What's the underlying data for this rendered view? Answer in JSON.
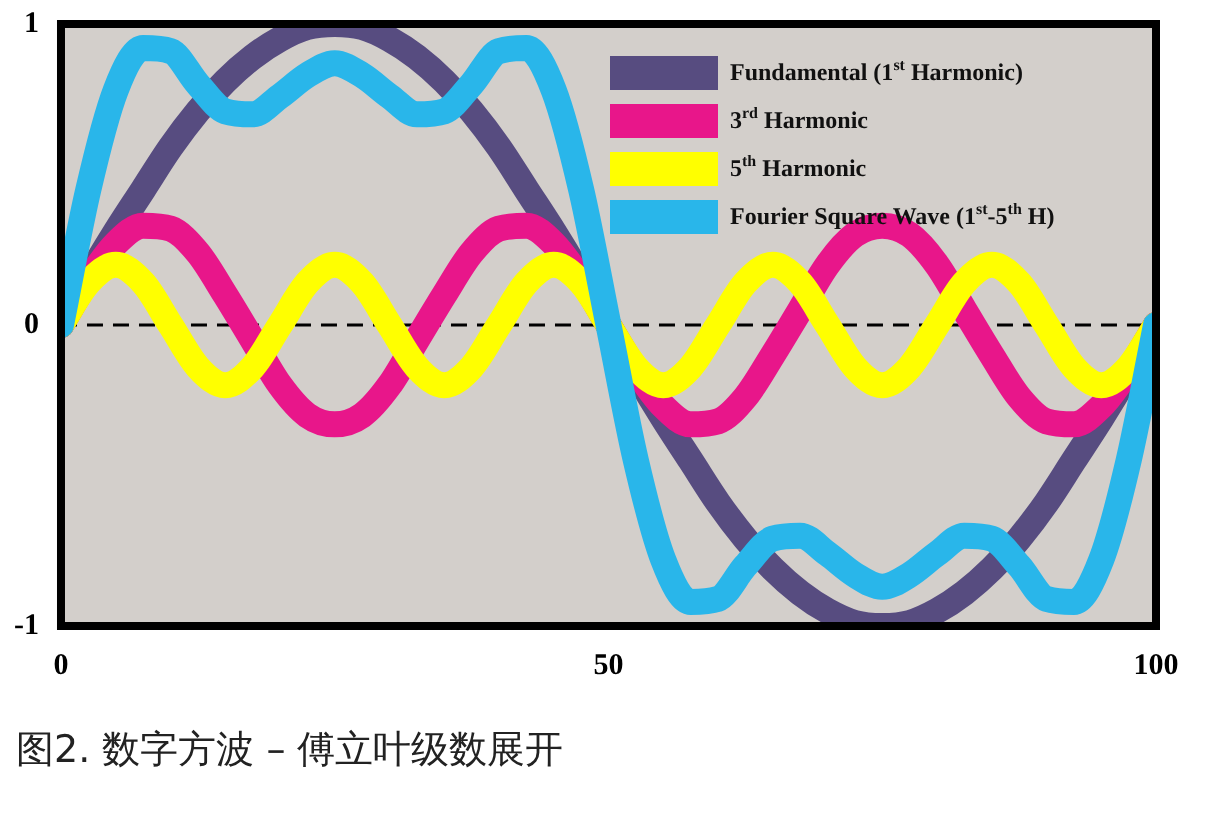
{
  "chart_data": {
    "type": "line",
    "x": [
      0,
      2.5,
      5,
      7.5,
      10,
      12.5,
      15,
      17.5,
      20,
      22.5,
      25,
      27.5,
      30,
      32.5,
      35,
      37.5,
      40,
      42.5,
      45,
      47.5,
      50,
      52.5,
      55,
      57.5,
      60,
      62.5,
      65,
      67.5,
      70,
      72.5,
      75,
      77.5,
      80,
      82.5,
      85,
      87.5,
      90,
      92.5,
      95,
      97.5,
      100
    ],
    "series": [
      {
        "name": "Fundamental (1$^{st}$ Harmonic)",
        "color": "#574c80",
        "values": [
          0,
          0.16,
          0.31,
          0.45,
          0.59,
          0.71,
          0.81,
          0.89,
          0.95,
          0.99,
          1,
          0.99,
          0.95,
          0.89,
          0.81,
          0.71,
          0.59,
          0.45,
          0.31,
          0.16,
          0,
          -0.16,
          -0.31,
          -0.45,
          -0.59,
          -0.71,
          -0.81,
          -0.89,
          -0.95,
          -0.99,
          -1,
          -0.99,
          -0.95,
          -0.89,
          -0.81,
          -0.71,
          -0.59,
          -0.45,
          -0.31,
          -0.16,
          0
        ]
      },
      {
        "name": "3$^{rd}$ Harmonic",
        "color": "#e8168a",
        "values": [
          0,
          0.15,
          0.27,
          0.33,
          0.32,
          0.24,
          0.1,
          -0.05,
          -0.2,
          -0.3,
          -0.33,
          -0.3,
          -0.2,
          -0.05,
          0.1,
          0.24,
          0.32,
          0.33,
          0.27,
          0.15,
          0,
          -0.15,
          -0.27,
          -0.33,
          -0.32,
          -0.24,
          -0.1,
          0.05,
          0.2,
          0.3,
          0.33,
          0.3,
          0.2,
          0.05,
          -0.1,
          -0.24,
          -0.32,
          -0.33,
          -0.27,
          -0.15,
          0
        ]
      },
      {
        "name": "5$^{th}$ Harmonic",
        "color": "#ffff00",
        "values": [
          0,
          0.14,
          0.2,
          0.14,
          0,
          -0.14,
          -0.2,
          -0.14,
          0,
          0.14,
          0.2,
          0.14,
          0,
          -0.14,
          -0.2,
          -0.14,
          0,
          0.14,
          0.2,
          0.14,
          0,
          -0.14,
          -0.2,
          -0.14,
          0,
          0.14,
          0.2,
          0.14,
          0,
          -0.14,
          -0.2,
          -0.14,
          0,
          0.14,
          0.2,
          0.14,
          0,
          -0.14,
          -0.2,
          -0.14,
          0
        ]
      },
      {
        "name": "Fourier Square Wave (1$^{st}$-5$^{th}$ H)",
        "color": "#29b6ea",
        "values": [
          0,
          0.45,
          0.78,
          0.92,
          0.91,
          0.8,
          0.71,
          0.7,
          0.76,
          0.83,
          0.87,
          0.83,
          0.76,
          0.7,
          0.71,
          0.8,
          0.91,
          0.92,
          0.78,
          0.45,
          0,
          -0.45,
          -0.78,
          -0.92,
          -0.91,
          -0.8,
          -0.71,
          -0.7,
          -0.76,
          -0.83,
          -0.87,
          -0.83,
          -0.76,
          -0.7,
          -0.71,
          -0.8,
          -0.91,
          -0.92,
          -0.78,
          -0.45,
          0
        ]
      }
    ],
    "xlim": [
      0,
      100
    ],
    "xticks": [
      0,
      50,
      100
    ],
    "ylim": [
      -1,
      1
    ],
    "yticks": [
      -1,
      0,
      1
    ],
    "ref_lines": [
      {
        "axis": "y",
        "value": 0,
        "line_style": "dashed",
        "color": "#000000"
      }
    ],
    "grid": false,
    "legend": "top right",
    "marker": "none",
    "line_style": "solid",
    "annotations": [
      "图2. 数字方波 – 傅立叶级数展开"
    ]
  }
}
